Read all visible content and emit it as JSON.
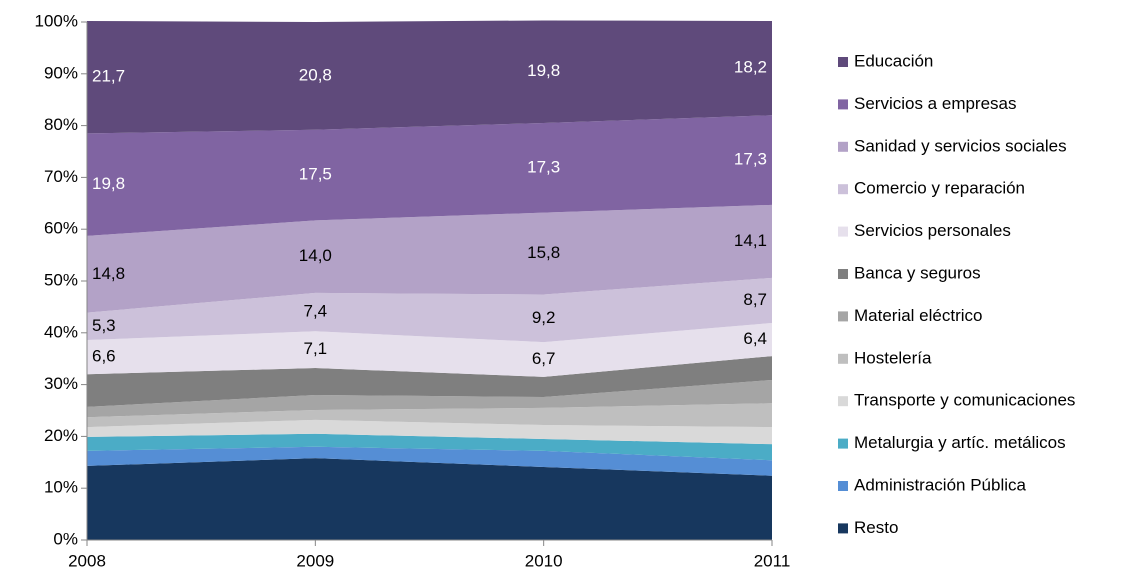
{
  "chart_data": {
    "type": "stacked_area",
    "x": [
      2008,
      2009,
      2010,
      2011
    ],
    "xlim": [
      2008,
      2011
    ],
    "xticks": [
      2008,
      2009,
      2010,
      2011
    ],
    "ylim": [
      0,
      100
    ],
    "yticks": [
      {
        "value": 0,
        "label": "0%"
      },
      {
        "value": 10,
        "label": "10%"
      },
      {
        "value": 20,
        "label": "20%"
      },
      {
        "value": 30,
        "label": "30%"
      },
      {
        "value": 40,
        "label": "40%"
      },
      {
        "value": 50,
        "label": "50%"
      },
      {
        "value": 60,
        "label": "60%"
      },
      {
        "value": 70,
        "label": "70%"
      },
      {
        "value": 80,
        "label": "80%"
      },
      {
        "value": 90,
        "label": "90%"
      },
      {
        "value": 100,
        "label": "100%"
      }
    ],
    "legend": "right",
    "series": [
      {
        "name": "Resto",
        "color": "#17375e",
        "values": [
          14.3,
          15.8,
          14.1,
          12.4
        ]
      },
      {
        "name": "Administración Pública",
        "color": "#558ed5",
        "values": [
          2.9,
          2.2,
          3.1,
          3.0
        ]
      },
      {
        "name": "Metalurgia y artíc. metálicos",
        "color": "#4bacc6",
        "values": [
          2.7,
          2.5,
          2.3,
          3.1
        ]
      },
      {
        "name": "Transporte y comunicaciones",
        "color": "#d9d9d9",
        "values": [
          1.9,
          2.7,
          2.7,
          3.3
        ]
      },
      {
        "name": "Hostelería",
        "color": "#bfbfbf",
        "values": [
          1.9,
          1.9,
          3.3,
          4.6
        ]
      },
      {
        "name": "Material eléctrico",
        "color": "#a5a5a5",
        "values": [
          2.0,
          2.9,
          2.1,
          4.5
        ]
      },
      {
        "name": "Banca y seguros",
        "color": "#7f7f7f",
        "values": [
          6.3,
          5.2,
          3.9,
          4.6
        ]
      },
      {
        "name": "Servicios personales",
        "color": "#e6e0ec",
        "values": [
          6.6,
          7.1,
          6.7,
          6.4
        ],
        "value_labels": [
          "6,6",
          "7,1",
          "6,7",
          "6,4"
        ]
      },
      {
        "name": "Comercio y reparación",
        "color": "#ccc1da",
        "values": [
          5.3,
          7.4,
          9.2,
          8.7
        ],
        "value_labels": [
          "5,3",
          "7,4",
          "9,2",
          "8,7"
        ]
      },
      {
        "name": "Sanidad y servicios sociales",
        "color": "#b3a2c7",
        "values": [
          14.8,
          14.0,
          15.8,
          14.1
        ],
        "value_labels": [
          "14,8",
          "14,0",
          "15,8",
          "14,1"
        ]
      },
      {
        "name": "Servicios a empresas",
        "color": "#8064a2",
        "values": [
          19.8,
          17.5,
          17.3,
          17.3
        ],
        "value_labels": [
          "19,8",
          "17,5",
          "17,3",
          "17,3"
        ]
      },
      {
        "name": "Educación",
        "color": "#5f4a7b",
        "values": [
          21.7,
          20.8,
          19.8,
          18.2
        ],
        "value_labels": [
          "21,7",
          "20,8",
          "19,8",
          "18,2"
        ]
      }
    ]
  }
}
